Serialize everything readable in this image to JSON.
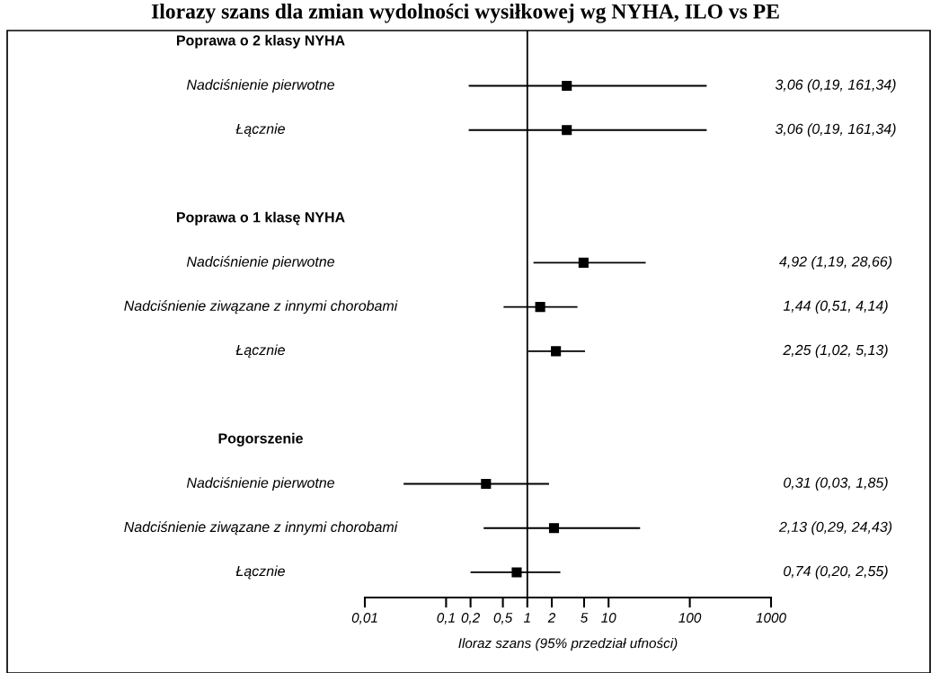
{
  "chart_data": {
    "type": "scatter",
    "orientation": "horizontal",
    "title": "Ilorazy szans dla zmian wydolności wysiłkowej wg NYHA, ILO vs PE",
    "xlabel": "Iloraz szans (95% przedział ufności)",
    "categories": [
      "Poprawa o 2 klasy NYHA",
      "Nadciśnienie pierwotne",
      "Łącznie",
      null,
      "Poprawa o 1 klasę NYHA",
      "Nadciśnienie pierwotne",
      "Nadciśnienie ziwązane z innymi chorobami",
      "Łącznie",
      null,
      "Pogorszenie",
      "Nadciśnienie pierwotne",
      "Nadciśnienie ziwązane z innymi chorobami",
      "Łącznie"
    ],
    "values": [
      null,
      3.06,
      3.06,
      null,
      null,
      4.92,
      1.44,
      2.25,
      null,
      null,
      0.31,
      2.13,
      0.74
    ],
    "errors": [
      null,
      [
        0.19,
        161.34
      ],
      [
        0.19,
        161.34
      ],
      null,
      null,
      [
        1.19,
        28.66
      ],
      [
        0.51,
        4.14
      ],
      [
        1.02,
        5.13
      ],
      null,
      null,
      [
        0.03,
        1.85
      ],
      [
        0.29,
        24.43
      ],
      [
        0.2,
        2.55
      ]
    ],
    "value_labels": [
      null,
      "3,06 (0,19, 161,34)",
      "3,06 (0,19, 161,34)",
      null,
      null,
      "4,92 (1,19, 28,66)",
      "1,44 (0,51, 4,14)",
      "2,25 (1,02, 5,13)",
      null,
      null,
      "0,31 (0,03, 1,85)",
      "2,13 (0,29, 24,43)",
      "0,74 (0,20, 2,55)"
    ],
    "color": "#000000",
    "marker": "square",
    "log": "x",
    "xlim": [
      0.01,
      1000
    ],
    "xticks": [
      {
        "value": 0.01,
        "label": "0,01"
      },
      {
        "value": 0.1,
        "label": "0,1"
      },
      {
        "value": 0.2,
        "label": "0,2"
      },
      {
        "value": 0.5,
        "label": "0,5"
      },
      1,
      2,
      5,
      10,
      100,
      1000
    ],
    "ref_lines": [
      {
        "axis": "x",
        "value": 1,
        "color": "#000000"
      }
    ],
    "grid": false,
    "legend": false
  }
}
